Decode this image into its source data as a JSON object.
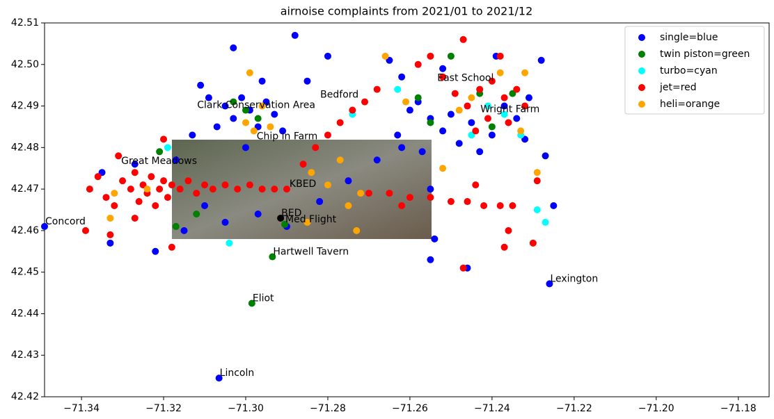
{
  "chart_data": {
    "type": "scatter",
    "title": "airnoise complaints from 2021/01 to 2021/12",
    "xlim": [
      -71.349,
      -71.1725
    ],
    "ylim": [
      42.42,
      42.51
    ],
    "xticks": [
      {
        "value": -71.34,
        "label": "−71.34"
      },
      {
        "value": -71.32,
        "label": "−71.32"
      },
      {
        "value": -71.3,
        "label": "−71.30"
      },
      {
        "value": -71.28,
        "label": "−71.28"
      },
      {
        "value": -71.26,
        "label": "−71.26"
      },
      {
        "value": -71.24,
        "label": "−71.24"
      },
      {
        "value": -71.22,
        "label": "−71.22"
      },
      {
        "value": -71.2,
        "label": "−71.20"
      },
      {
        "value": -71.18,
        "label": "−71.18"
      }
    ],
    "yticks": [
      42.42,
      42.43,
      42.44,
      42.45,
      42.46,
      42.47,
      42.48,
      42.49,
      {
        "value": 42.5,
        "label": "42.50"
      },
      42.51
    ],
    "legend": "upper right",
    "series": [
      {
        "name": "single=blue",
        "color": "#0000ff",
        "x": [
          -71.305,
          -71.303,
          -71.301,
          -71.299,
          -71.297,
          -71.295,
          -71.293,
          -71.307,
          -71.309,
          -71.296,
          -71.303,
          -71.288,
          -71.28,
          -71.285,
          -71.311,
          -71.313,
          -71.291,
          -71.3,
          -71.317,
          -71.335,
          -71.327,
          -71.31,
          -71.305,
          -71.315,
          -71.322,
          -71.333,
          -71.297,
          -71.29,
          -71.282,
          -71.275,
          -71.268,
          -71.262,
          -71.257,
          -71.255,
          -71.254,
          -71.255,
          -71.246,
          -71.225,
          -71.227,
          -71.258,
          -71.255,
          -71.252,
          -71.25,
          -71.248,
          -71.245,
          -71.243,
          -71.24,
          -71.237,
          -71.234,
          -71.231,
          -71.228,
          -71.239,
          -71.252,
          -71.262,
          -71.265,
          -71.26,
          -71.263,
          -71.232
        ],
        "y": [
          42.49,
          42.487,
          42.492,
          42.489,
          42.485,
          42.491,
          42.488,
          42.485,
          42.492,
          42.496,
          42.504,
          42.507,
          42.502,
          42.496,
          42.495,
          42.483,
          42.484,
          42.48,
          42.477,
          42.474,
          42.476,
          42.466,
          42.462,
          42.46,
          42.455,
          42.457,
          42.464,
          42.461,
          42.467,
          42.472,
          42.477,
          42.48,
          42.479,
          42.47,
          42.458,
          42.453,
          42.451,
          42.466,
          42.478,
          42.491,
          42.487,
          42.484,
          42.488,
          42.481,
          42.486,
          42.479,
          42.483,
          42.49,
          42.487,
          42.492,
          42.501,
          42.502,
          42.499,
          42.497,
          42.501,
          42.489,
          42.483,
          42.482
        ]
      },
      {
        "name": "twin piston=green",
        "color": "#008000",
        "x": [
          -71.303,
          -71.3,
          -71.297,
          -71.321,
          -71.312,
          -71.317,
          -71.25,
          -71.243,
          -71.24,
          -71.255,
          -71.235,
          -71.258
        ],
        "y": [
          42.491,
          42.489,
          42.487,
          42.479,
          42.464,
          42.461,
          42.502,
          42.493,
          42.485,
          42.486,
          42.493,
          42.492
        ]
      },
      {
        "name": "turbo=cyan",
        "color": "#00ffff",
        "x": [
          -71.319,
          -71.304,
          -71.274,
          -71.245,
          -71.241,
          -71.233,
          -71.229,
          -71.227,
          -71.263,
          -71.237
        ],
        "y": [
          42.48,
          42.457,
          42.488,
          42.483,
          42.49,
          42.483,
          42.465,
          42.462,
          42.494,
          42.488
        ]
      },
      {
        "name": "jet=red",
        "color": "#ff0000",
        "x": [
          -71.338,
          -71.336,
          -71.334,
          -71.332,
          -71.33,
          -71.328,
          -71.327,
          -71.326,
          -71.325,
          -71.324,
          -71.323,
          -71.322,
          -71.321,
          -71.32,
          -71.319,
          -71.318,
          -71.316,
          -71.314,
          -71.312,
          -71.31,
          -71.308,
          -71.305,
          -71.302,
          -71.299,
          -71.296,
          -71.293,
          -71.29,
          -71.339,
          -71.333,
          -71.331,
          -71.327,
          -71.32,
          -71.318,
          -71.27,
          -71.265,
          -71.26,
          -71.255,
          -71.25,
          -71.246,
          -71.242,
          -71.238,
          -71.235,
          -71.262,
          -71.244,
          -71.237,
          -71.23,
          -71.236,
          -71.229,
          -71.247,
          -71.283,
          -71.28,
          -71.277,
          -71.274,
          -71.271,
          -71.268,
          -71.286,
          -71.258,
          -71.255,
          -71.252,
          -71.249,
          -71.246,
          -71.243,
          -71.24,
          -71.237,
          -71.234,
          -71.232,
          -71.241,
          -71.247,
          -71.238,
          -71.244,
          -71.236
        ],
        "y": [
          42.47,
          42.473,
          42.468,
          42.466,
          42.472,
          42.47,
          42.474,
          42.467,
          42.471,
          42.469,
          42.473,
          42.466,
          42.47,
          42.472,
          42.468,
          42.471,
          42.47,
          42.472,
          42.469,
          42.471,
          42.47,
          42.471,
          42.47,
          42.471,
          42.47,
          42.47,
          42.47,
          42.46,
          42.459,
          42.478,
          42.463,
          42.482,
          42.456,
          42.469,
          42.469,
          42.468,
          42.468,
          42.467,
          42.467,
          42.466,
          42.466,
          42.466,
          42.466,
          42.471,
          42.456,
          42.457,
          42.46,
          42.472,
          42.451,
          42.48,
          42.483,
          42.486,
          42.489,
          42.491,
          42.494,
          42.476,
          42.5,
          42.502,
          42.497,
          42.493,
          42.49,
          42.494,
          42.496,
          42.492,
          42.494,
          42.49,
          42.487,
          42.506,
          42.502,
          42.484,
          42.486
        ]
      },
      {
        "name": "heli=orange",
        "color": "#ffa500",
        "x": [
          -71.298,
          -71.3,
          -71.296,
          -71.299,
          -71.294,
          -71.332,
          -71.324,
          -71.333,
          -71.284,
          -71.28,
          -71.275,
          -71.272,
          -71.277,
          -71.273,
          -71.266,
          -71.261,
          -71.248,
          -71.245,
          -71.238,
          -71.229,
          -71.252,
          -71.233,
          -71.232,
          -71.285
        ],
        "y": [
          42.484,
          42.486,
          42.49,
          42.498,
          42.485,
          42.469,
          42.47,
          42.463,
          42.474,
          42.471,
          42.466,
          42.469,
          42.477,
          42.46,
          42.502,
          42.491,
          42.489,
          42.492,
          42.498,
          42.474,
          42.475,
          42.484,
          42.498,
          42.462
        ]
      }
    ],
    "landmarks": [
      {
        "name": "Concord",
        "x": -71.349,
        "y": 42.461,
        "color": "#0000ff"
      },
      {
        "name": "Lincoln",
        "x": -71.3065,
        "y": 42.4245,
        "color": "#0000ff"
      },
      {
        "name": "Lexington",
        "x": -71.226,
        "y": 42.4472,
        "color": "#0000ff"
      },
      {
        "name": "Eliot",
        "x": -71.2985,
        "y": 42.4425,
        "color": "#008000"
      },
      {
        "name": "Hartwell Tavern",
        "x": -71.2935,
        "y": 42.4537,
        "color": "#008000"
      },
      {
        "name": "BED",
        "x": -71.2915,
        "y": 42.463,
        "color": "#000000"
      },
      {
        "name": "Med Flight",
        "x": -71.2905,
        "y": 42.4615,
        "color": "#008000"
      },
      {
        "name": "KBED",
        "x": -71.2895,
        "y": 42.47
      },
      {
        "name": "Chip in Farm",
        "x": -71.2975,
        "y": 42.4815
      },
      {
        "name": "Great Meadows",
        "x": -71.3305,
        "y": 42.4755
      },
      {
        "name": "Clark Conservation Area",
        "x": -71.312,
        "y": 42.489
      },
      {
        "name": "Bedford",
        "x": -71.282,
        "y": 42.4915
      },
      {
        "name": "East School",
        "x": -71.2535,
        "y": 42.4955
      },
      {
        "name": "Wright Farm",
        "x": -71.243,
        "y": 42.488
      }
    ]
  }
}
